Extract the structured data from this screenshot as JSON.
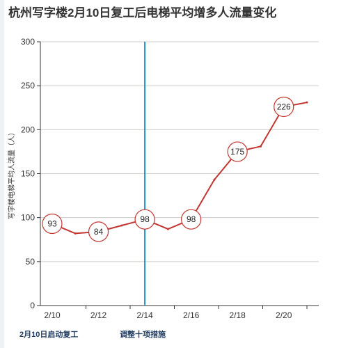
{
  "chart_data": {
    "type": "line",
    "title": "杭州写字楼2月10日复工后电梯平均增多人流量变化",
    "ylabel": "写字楼电梯平均人流量（人）",
    "xlabel": "",
    "ylim": [
      0,
      300
    ],
    "yticks": [
      "0",
      "50",
      "100",
      "150",
      "200",
      "250",
      "300"
    ],
    "x": [
      "2/10",
      "2/11",
      "2/12",
      "2/13",
      "2/14",
      "2/15",
      "2/16",
      "2/17",
      "2/18",
      "2/19",
      "2/20",
      "2/21"
    ],
    "x_tick_labels": [
      "2/10",
      "2/12",
      "2/14",
      "2/16",
      "2/18",
      "2/20"
    ],
    "series": [
      {
        "values": [
          93,
          82,
          84,
          91,
          98,
          87,
          98,
          143,
          175,
          181,
          226,
          231
        ]
      }
    ],
    "labeled_points": [
      {
        "x": "2/10",
        "value": "93"
      },
      {
        "x": "2/12",
        "value": "84"
      },
      {
        "x": "2/14",
        "value": "98"
      },
      {
        "x": "2/16",
        "value": "98"
      },
      {
        "x": "2/18",
        "value": "175"
      },
      {
        "x": "2/20",
        "value": "226"
      }
    ],
    "mark_line_x": "2/14",
    "grid": true,
    "colors": {
      "line": "#c23531",
      "mark_line": "#1f8ec9",
      "grid": "#cccccc",
      "axis": "#333333"
    }
  },
  "annotations": {
    "left_note": "2月10日启动复工",
    "right_note": "调整十项措施"
  }
}
